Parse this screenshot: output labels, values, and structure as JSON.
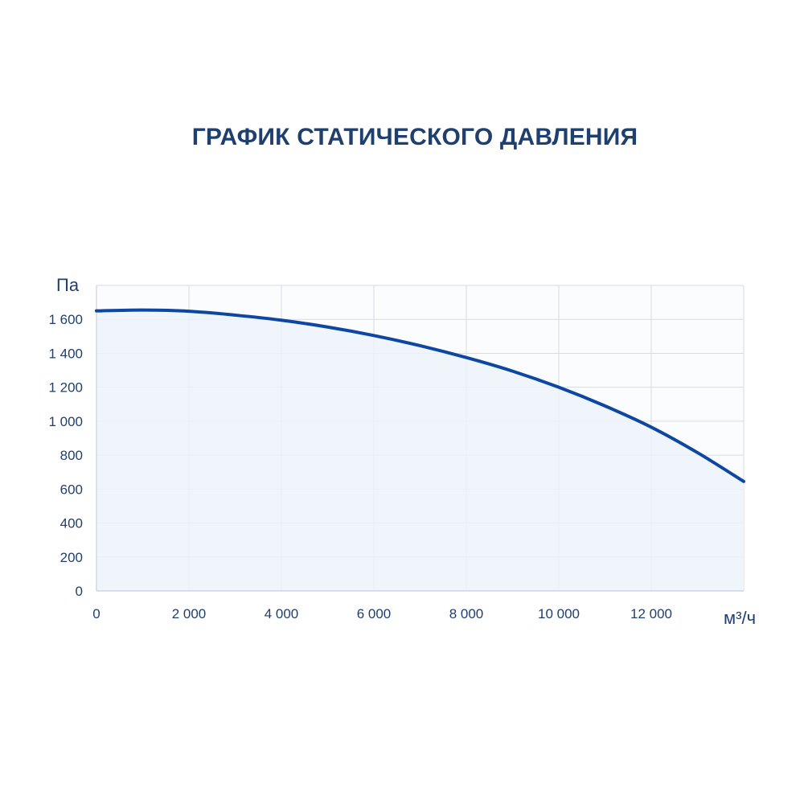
{
  "chart_data": {
    "type": "line",
    "title": "ГРАФИК СТАТИЧЕСКОГО ДАВЛЕНИЯ",
    "xlabel": "м³/ч",
    "ylabel": "Па",
    "xlim": [
      0,
      14000
    ],
    "ylim": [
      0,
      1800
    ],
    "x_ticks": [
      0,
      2000,
      4000,
      6000,
      8000,
      10000,
      12000
    ],
    "x_tick_labels": [
      "0",
      "2 000",
      "4 000",
      "6 000",
      "8 000",
      "10 000",
      "12 000"
    ],
    "y_ticks": [
      0,
      200,
      400,
      600,
      800,
      1000,
      1200,
      1400,
      1600
    ],
    "y_tick_labels": [
      "0",
      "200",
      "400",
      "600",
      "800",
      "1 000",
      "1 200",
      "1 400",
      "1 600"
    ],
    "grid": true,
    "fill_under": true,
    "colors": {
      "line": "#0d47a1",
      "fill": "#eef3fb",
      "grid": "#d6dce6",
      "text": "#1f3f6e"
    },
    "series": [
      {
        "x": [
          0,
          1000,
          2000,
          3000,
          4000,
          5000,
          6000,
          7000,
          8000,
          9000,
          10000,
          11000,
          12000,
          13000,
          14000
        ],
        "values": [
          1650,
          1655,
          1648,
          1625,
          1595,
          1555,
          1505,
          1445,
          1375,
          1295,
          1200,
          1090,
          965,
          815,
          645
        ]
      }
    ]
  }
}
